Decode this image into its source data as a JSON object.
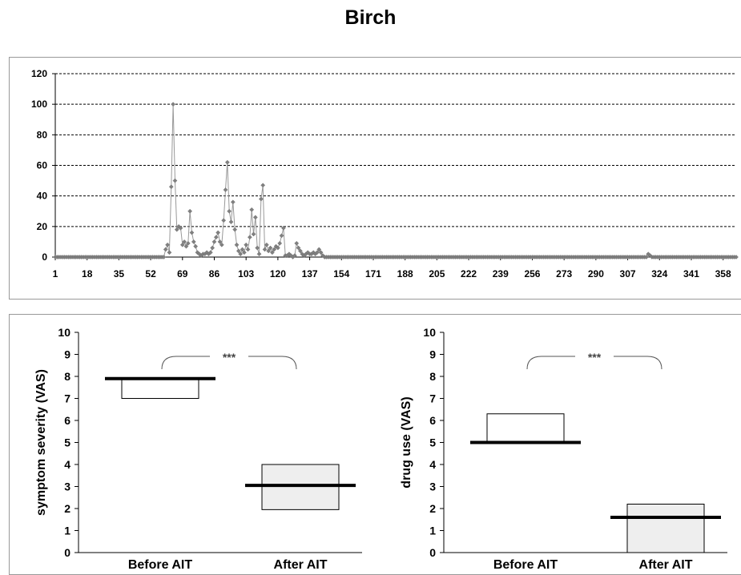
{
  "title": "Birch",
  "chart_data": [
    {
      "type": "line",
      "name": "pollen-count-timeseries",
      "xlabel": "",
      "ylabel": "",
      "ylim": [
        0,
        120
      ],
      "yticks": [
        0,
        20,
        40,
        60,
        80,
        100,
        120
      ],
      "xlim": [
        1,
        365
      ],
      "xticks": [
        1,
        18,
        35,
        52,
        69,
        86,
        103,
        120,
        137,
        154,
        171,
        188,
        205,
        222,
        239,
        256,
        273,
        290,
        307,
        324,
        341,
        358
      ],
      "grid": true,
      "legend": "none",
      "colors": {
        "line": "#999999",
        "marker": "#808080"
      },
      "points": [
        [
          60,
          5
        ],
        [
          61,
          8
        ],
        [
          62,
          3
        ],
        [
          63,
          46
        ],
        [
          64,
          100
        ],
        [
          65,
          50
        ],
        [
          66,
          18
        ],
        [
          67,
          20
        ],
        [
          68,
          19
        ],
        [
          69,
          8
        ],
        [
          70,
          10
        ],
        [
          71,
          7
        ],
        [
          72,
          9
        ],
        [
          73,
          30
        ],
        [
          74,
          16
        ],
        [
          75,
          10
        ],
        [
          76,
          7
        ],
        [
          77,
          3
        ],
        [
          78,
          2
        ],
        [
          79,
          1
        ],
        [
          80,
          2
        ],
        [
          81,
          2
        ],
        [
          82,
          3
        ],
        [
          83,
          2
        ],
        [
          84,
          3
        ],
        [
          85,
          6
        ],
        [
          86,
          10
        ],
        [
          87,
          13
        ],
        [
          88,
          16
        ],
        [
          89,
          10
        ],
        [
          90,
          8
        ],
        [
          91,
          24
        ],
        [
          92,
          44
        ],
        [
          93,
          62
        ],
        [
          94,
          30
        ],
        [
          95,
          23
        ],
        [
          96,
          36
        ],
        [
          97,
          18
        ],
        [
          98,
          8
        ],
        [
          99,
          4
        ],
        [
          100,
          2
        ],
        [
          101,
          5
        ],
        [
          102,
          3
        ],
        [
          103,
          8
        ],
        [
          104,
          5
        ],
        [
          105,
          13
        ],
        [
          106,
          31
        ],
        [
          107,
          15
        ],
        [
          108,
          26
        ],
        [
          109,
          6
        ],
        [
          110,
          2
        ],
        [
          111,
          38
        ],
        [
          112,
          47
        ],
        [
          113,
          5
        ],
        [
          114,
          8
        ],
        [
          115,
          4
        ],
        [
          116,
          6
        ],
        [
          117,
          3
        ],
        [
          118,
          5
        ],
        [
          119,
          7
        ],
        [
          120,
          6
        ],
        [
          121,
          9
        ],
        [
          122,
          14
        ],
        [
          123,
          19
        ],
        [
          124,
          1
        ],
        [
          125,
          1
        ],
        [
          126,
          2
        ],
        [
          127,
          1
        ],
        [
          128,
          0
        ],
        [
          129,
          1
        ],
        [
          130,
          9
        ],
        [
          131,
          6
        ],
        [
          132,
          4
        ],
        [
          133,
          2
        ],
        [
          134,
          1
        ],
        [
          135,
          2
        ],
        [
          136,
          3
        ],
        [
          137,
          2
        ],
        [
          138,
          2
        ],
        [
          139,
          3
        ],
        [
          140,
          2
        ],
        [
          141,
          3
        ],
        [
          142,
          5
        ],
        [
          143,
          3
        ],
        [
          144,
          1
        ],
        [
          318,
          2
        ],
        [
          319,
          1
        ]
      ]
    },
    {
      "type": "box",
      "name": "symptom-severity",
      "ylabel": "symptom severity (VAS)",
      "ylim": [
        0,
        10
      ],
      "yticks": [
        0,
        1,
        2,
        3,
        4,
        5,
        6,
        7,
        8,
        9,
        10
      ],
      "categories": [
        "Before AIT",
        "After AIT"
      ],
      "boxes": [
        {
          "low": 7.0,
          "high": 7.9,
          "median": 7.9,
          "fill": "#ffffff"
        },
        {
          "low": 1.95,
          "high": 4.0,
          "median": 3.05,
          "fill": "#eeeeee"
        }
      ],
      "significance": "***"
    },
    {
      "type": "box",
      "name": "drug-use",
      "ylabel": "drug use (VAS)",
      "ylim": [
        0,
        10
      ],
      "yticks": [
        0,
        1,
        2,
        3,
        4,
        5,
        6,
        7,
        8,
        9,
        10
      ],
      "categories": [
        "Before AIT",
        "After AIT"
      ],
      "boxes": [
        {
          "low": 5.0,
          "high": 6.3,
          "median": 5.0,
          "fill": "#ffffff"
        },
        {
          "low": 0.0,
          "high": 2.2,
          "median": 1.6,
          "fill": "#eeeeee"
        }
      ],
      "significance": "***"
    }
  ]
}
